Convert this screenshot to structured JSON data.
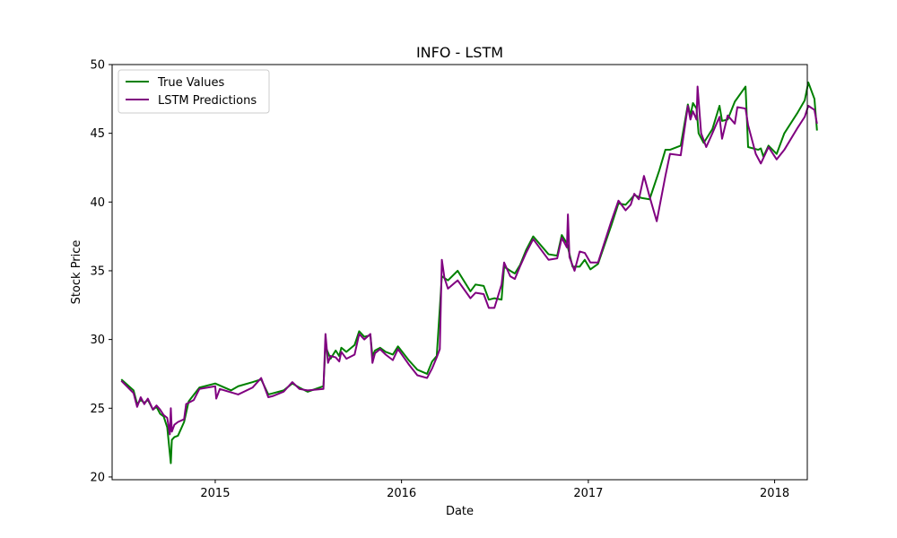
{
  "chart_data": {
    "type": "line",
    "title": "INFO - LSTM",
    "xlabel": "Date",
    "ylabel": "Stock Price",
    "xlim": [
      "2014-06-13",
      "2018-03-06"
    ],
    "ylim": [
      19.8,
      50
    ],
    "x_ticks": [
      {
        "date": "2015-01-01",
        "label": "2015"
      },
      {
        "date": "2016-01-01",
        "label": "2016"
      },
      {
        "date": "2017-01-01",
        "label": "2017"
      },
      {
        "date": "2018-01-01",
        "label": "2018"
      }
    ],
    "y_ticks": [
      20,
      25,
      30,
      35,
      40,
      45,
      50
    ],
    "grid": false,
    "legend_position": "top-left",
    "series": [
      {
        "name": "True Values",
        "color": "#008000",
        "points": [
          [
            "2014-07-01",
            27.1
          ],
          [
            "2014-07-25",
            26.3
          ],
          [
            "2014-08-01",
            25.3
          ],
          [
            "2014-08-08",
            25.6
          ],
          [
            "2014-08-15",
            25.4
          ],
          [
            "2014-08-22",
            25.6
          ],
          [
            "2014-09-01",
            24.9
          ],
          [
            "2014-09-08",
            25.1
          ],
          [
            "2014-09-15",
            24.6
          ],
          [
            "2014-09-22",
            24.4
          ],
          [
            "2014-09-29",
            23.6
          ],
          [
            "2014-10-06",
            21.0
          ],
          [
            "2014-10-08",
            22.7
          ],
          [
            "2014-10-13",
            22.9
          ],
          [
            "2014-10-20",
            23.0
          ],
          [
            "2014-11-01",
            24.0
          ],
          [
            "2014-11-10",
            25.5
          ],
          [
            "2014-12-01",
            26.5
          ],
          [
            "2015-01-01",
            26.8
          ],
          [
            "2015-02-01",
            26.3
          ],
          [
            "2015-02-15",
            26.6
          ],
          [
            "2015-03-15",
            26.9
          ],
          [
            "2015-04-01",
            27.1
          ],
          [
            "2015-04-15",
            26.0
          ],
          [
            "2015-04-25",
            26.1
          ],
          [
            "2015-05-15",
            26.3
          ],
          [
            "2015-06-01",
            26.8
          ],
          [
            "2015-06-15",
            26.5
          ],
          [
            "2015-07-01",
            26.2
          ],
          [
            "2015-08-01",
            26.6
          ],
          [
            "2015-08-05",
            29.5
          ],
          [
            "2015-08-15",
            28.6
          ],
          [
            "2015-08-25",
            29.2
          ],
          [
            "2015-09-01",
            28.8
          ],
          [
            "2015-09-05",
            29.4
          ],
          [
            "2015-09-15",
            29.1
          ],
          [
            "2015-10-01",
            29.6
          ],
          [
            "2015-10-10",
            30.6
          ],
          [
            "2015-10-20",
            30.2
          ],
          [
            "2015-11-01",
            30.3
          ],
          [
            "2015-11-05",
            28.8
          ],
          [
            "2015-11-10",
            29.2
          ],
          [
            "2015-11-20",
            29.4
          ],
          [
            "2015-12-01",
            29.1
          ],
          [
            "2015-12-15",
            28.9
          ],
          [
            "2015-12-25",
            29.5
          ],
          [
            "2016-01-15",
            28.5
          ],
          [
            "2016-02-01",
            27.8
          ],
          [
            "2016-02-20",
            27.5
          ],
          [
            "2016-03-01",
            28.4
          ],
          [
            "2016-03-10",
            28.8
          ],
          [
            "2016-03-20",
            34.6
          ],
          [
            "2016-04-01",
            34.3
          ],
          [
            "2016-04-20",
            35.0
          ],
          [
            "2016-05-15",
            33.5
          ],
          [
            "2016-05-25",
            34.0
          ],
          [
            "2016-06-10",
            33.9
          ],
          [
            "2016-06-20",
            32.9
          ],
          [
            "2016-07-01",
            33.0
          ],
          [
            "2016-07-15",
            32.9
          ],
          [
            "2016-07-20",
            35.3
          ],
          [
            "2016-08-01",
            35.0
          ],
          [
            "2016-08-10",
            34.8
          ],
          [
            "2016-08-20",
            35.4
          ],
          [
            "2016-09-01",
            36.5
          ],
          [
            "2016-09-15",
            37.5
          ],
          [
            "2016-10-15",
            36.2
          ],
          [
            "2016-11-01",
            36.1
          ],
          [
            "2016-11-10",
            37.6
          ],
          [
            "2016-11-20",
            37.0
          ],
          [
            "2016-12-01",
            35.3
          ],
          [
            "2016-12-15",
            35.3
          ],
          [
            "2016-12-25",
            35.8
          ],
          [
            "2017-01-05",
            35.1
          ],
          [
            "2017-01-20",
            35.5
          ],
          [
            "2017-02-15",
            38.3
          ],
          [
            "2017-03-01",
            39.9
          ],
          [
            "2017-03-15",
            39.8
          ],
          [
            "2017-03-25",
            40.2
          ],
          [
            "2017-04-01",
            40.5
          ],
          [
            "2017-04-15",
            40.3
          ],
          [
            "2017-05-01",
            40.2
          ],
          [
            "2017-05-20",
            42.3
          ],
          [
            "2017-06-01",
            43.8
          ],
          [
            "2017-06-10",
            43.8
          ],
          [
            "2017-07-01",
            44.1
          ],
          [
            "2017-07-15",
            47.1
          ],
          [
            "2017-07-20",
            46.3
          ],
          [
            "2017-07-25",
            47.2
          ],
          [
            "2017-08-01",
            46.8
          ],
          [
            "2017-08-05",
            45.0
          ],
          [
            "2017-08-15",
            44.3
          ],
          [
            "2017-09-01",
            45.3
          ],
          [
            "2017-09-15",
            47.0
          ],
          [
            "2017-09-20",
            45.9
          ],
          [
            "2017-10-01",
            46.0
          ],
          [
            "2017-10-15",
            47.3
          ],
          [
            "2017-11-05",
            48.4
          ],
          [
            "2017-11-10",
            44.0
          ],
          [
            "2017-11-30",
            43.8
          ],
          [
            "2017-12-05",
            43.9
          ],
          [
            "2017-12-10",
            43.3
          ],
          [
            "2017-12-20",
            44.1
          ],
          [
            "2018-01-05",
            43.5
          ],
          [
            "2018-01-20",
            45.0
          ],
          [
            "2018-02-15",
            46.5
          ],
          [
            "2018-03-01",
            47.4
          ],
          [
            "2018-03-08",
            48.7
          ],
          [
            "2018-03-20",
            47.5
          ],
          [
            "2018-03-25",
            45.2
          ]
        ]
      },
      {
        "name": "LSTM Predictions",
        "color": "#800080",
        "points": [
          [
            "2014-07-01",
            27.0
          ],
          [
            "2014-07-25",
            26.1
          ],
          [
            "2014-08-01",
            25.1
          ],
          [
            "2014-08-08",
            25.8
          ],
          [
            "2014-08-15",
            25.3
          ],
          [
            "2014-08-22",
            25.7
          ],
          [
            "2014-09-01",
            24.9
          ],
          [
            "2014-09-08",
            25.2
          ],
          [
            "2014-09-15",
            24.9
          ],
          [
            "2014-09-22",
            24.5
          ],
          [
            "2014-09-29",
            24.3
          ],
          [
            "2014-10-04",
            23.1
          ],
          [
            "2014-10-06",
            25.0
          ],
          [
            "2014-10-08",
            23.3
          ],
          [
            "2014-10-13",
            23.8
          ],
          [
            "2014-10-20",
            24.0
          ],
          [
            "2014-11-01",
            24.2
          ],
          [
            "2014-11-05",
            25.3
          ],
          [
            "2014-11-20",
            25.6
          ],
          [
            "2014-12-01",
            26.4
          ],
          [
            "2015-01-01",
            26.6
          ],
          [
            "2015-01-03",
            25.7
          ],
          [
            "2015-01-10",
            26.4
          ],
          [
            "2015-02-15",
            26.0
          ],
          [
            "2015-03-15",
            26.5
          ],
          [
            "2015-04-01",
            27.2
          ],
          [
            "2015-04-15",
            25.8
          ],
          [
            "2015-04-25",
            25.9
          ],
          [
            "2015-05-15",
            26.2
          ],
          [
            "2015-06-01",
            26.9
          ],
          [
            "2015-06-15",
            26.4
          ],
          [
            "2015-07-01",
            26.3
          ],
          [
            "2015-08-01",
            26.4
          ],
          [
            "2015-08-05",
            30.4
          ],
          [
            "2015-08-10",
            28.3
          ],
          [
            "2015-08-15",
            28.8
          ],
          [
            "2015-08-25",
            28.7
          ],
          [
            "2015-09-01",
            28.4
          ],
          [
            "2015-09-05",
            29.1
          ],
          [
            "2015-09-15",
            28.6
          ],
          [
            "2015-10-01",
            28.9
          ],
          [
            "2015-10-10",
            30.4
          ],
          [
            "2015-10-20",
            30.0
          ],
          [
            "2015-11-01",
            30.4
          ],
          [
            "2015-11-05",
            28.3
          ],
          [
            "2015-11-10",
            29.0
          ],
          [
            "2015-11-20",
            29.3
          ],
          [
            "2015-12-01",
            28.9
          ],
          [
            "2015-12-15",
            28.5
          ],
          [
            "2015-12-25",
            29.3
          ],
          [
            "2016-01-15",
            28.2
          ],
          [
            "2016-02-01",
            27.4
          ],
          [
            "2016-02-20",
            27.2
          ],
          [
            "2016-03-01",
            27.9
          ],
          [
            "2016-03-10",
            28.7
          ],
          [
            "2016-03-16",
            29.3
          ],
          [
            "2016-03-20",
            35.8
          ],
          [
            "2016-03-25",
            34.5
          ],
          [
            "2016-04-01",
            33.7
          ],
          [
            "2016-04-20",
            34.3
          ],
          [
            "2016-05-15",
            33.0
          ],
          [
            "2016-05-25",
            33.4
          ],
          [
            "2016-06-10",
            33.3
          ],
          [
            "2016-06-20",
            32.3
          ],
          [
            "2016-07-01",
            32.3
          ],
          [
            "2016-07-15",
            34.0
          ],
          [
            "2016-07-20",
            35.6
          ],
          [
            "2016-08-01",
            34.6
          ],
          [
            "2016-08-10",
            34.4
          ],
          [
            "2016-08-20",
            35.3
          ],
          [
            "2016-09-01",
            36.3
          ],
          [
            "2016-09-15",
            37.3
          ],
          [
            "2016-10-15",
            35.8
          ],
          [
            "2016-11-01",
            35.9
          ],
          [
            "2016-11-10",
            37.4
          ],
          [
            "2016-11-20",
            36.7
          ],
          [
            "2016-11-22",
            39.1
          ],
          [
            "2016-11-25",
            36.0
          ],
          [
            "2016-12-05",
            35.0
          ],
          [
            "2016-12-15",
            36.4
          ],
          [
            "2016-12-25",
            36.3
          ],
          [
            "2017-01-05",
            35.6
          ],
          [
            "2017-01-20",
            35.6
          ],
          [
            "2017-02-15",
            38.6
          ],
          [
            "2017-03-01",
            40.1
          ],
          [
            "2017-03-15",
            39.4
          ],
          [
            "2017-03-25",
            39.8
          ],
          [
            "2017-04-01",
            40.6
          ],
          [
            "2017-04-10",
            40.2
          ],
          [
            "2017-04-20",
            41.9
          ],
          [
            "2017-05-01",
            40.4
          ],
          [
            "2017-05-15",
            38.6
          ],
          [
            "2017-06-01",
            41.9
          ],
          [
            "2017-06-10",
            43.5
          ],
          [
            "2017-07-01",
            43.4
          ],
          [
            "2017-07-15",
            47.0
          ],
          [
            "2017-07-20",
            46.0
          ],
          [
            "2017-07-25",
            46.6
          ],
          [
            "2017-08-01",
            46.0
          ],
          [
            "2017-08-03",
            48.4
          ],
          [
            "2017-08-10",
            45.0
          ],
          [
            "2017-08-20",
            44.0
          ],
          [
            "2017-09-01",
            45.0
          ],
          [
            "2017-09-15",
            46.2
          ],
          [
            "2017-09-20",
            44.6
          ],
          [
            "2017-10-01",
            46.3
          ],
          [
            "2017-10-15",
            45.7
          ],
          [
            "2017-10-20",
            46.9
          ],
          [
            "2017-11-05",
            46.8
          ],
          [
            "2017-11-10",
            45.6
          ],
          [
            "2017-11-25",
            43.5
          ],
          [
            "2017-12-05",
            42.8
          ],
          [
            "2017-12-20",
            44.0
          ],
          [
            "2018-01-05",
            43.1
          ],
          [
            "2018-01-20",
            43.8
          ],
          [
            "2018-02-15",
            45.4
          ],
          [
            "2018-03-01",
            46.2
          ],
          [
            "2018-03-08",
            47.0
          ],
          [
            "2018-03-20",
            46.7
          ],
          [
            "2018-03-25",
            45.7
          ]
        ]
      }
    ]
  }
}
